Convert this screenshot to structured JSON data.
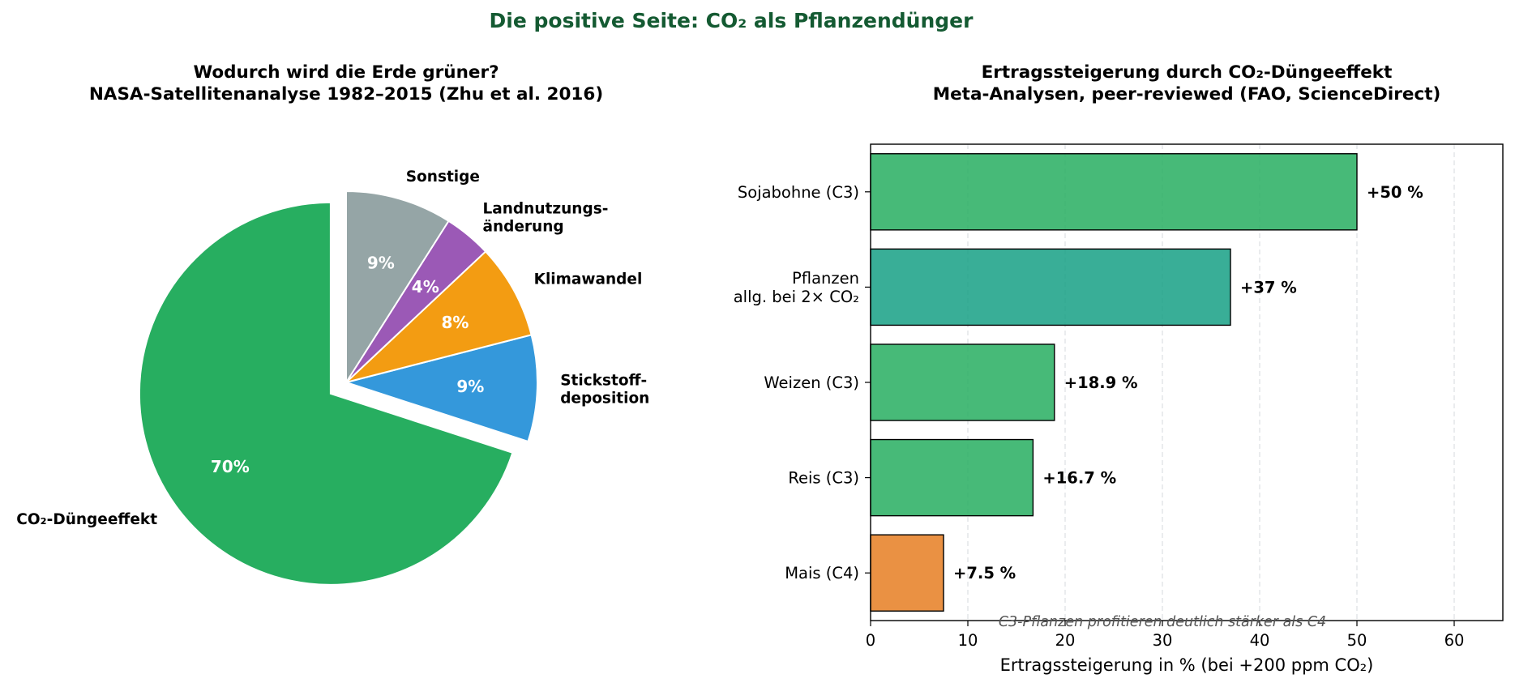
{
  "figure": {
    "suptitle": "Die positive Seite: CO₂ als Pflanzendünger",
    "suptitle_color": "#145a32"
  },
  "chart_data": [
    {
      "type": "pie",
      "title_lines": [
        "Wodurch wird die Erde grüner?",
        "NASA-Satellitenanalyse 1982–2015 (Zhu et al. 2016)"
      ],
      "slices": [
        {
          "label": [
            "CO₂-Düngeeffekt"
          ],
          "value": 70,
          "pct_label": "70%",
          "color": "#27ae60",
          "exploded": true
        },
        {
          "label": [
            "Stickstoff-",
            "deposition"
          ],
          "value": 9,
          "pct_label": "9%",
          "color": "#3498db",
          "exploded": false
        },
        {
          "label": [
            "Klimawandel"
          ],
          "value": 8,
          "pct_label": "8%",
          "color": "#f39c12",
          "exploded": false
        },
        {
          "label": [
            "Landnutzungs-",
            "änderung"
          ],
          "value": 4,
          "pct_label": "4%",
          "color": "#9b59b6",
          "exploded": false
        },
        {
          "label": [
            "Sonstige"
          ],
          "value": 9,
          "pct_label": "9%",
          "color": "#95a5a6",
          "exploded": false
        }
      ],
      "start_angle_deg": 90,
      "direction": "counterclockwise"
    },
    {
      "type": "bar",
      "orientation": "horizontal",
      "title_lines": [
        "Ertragssteigerung durch CO₂-Düngeeffekt",
        "Meta-Analysen, peer-reviewed (FAO, ScienceDirect)"
      ],
      "categories": [
        [
          "Sojabohne (C3)"
        ],
        [
          "Pflanzen",
          "allg. bei 2× CO₂"
        ],
        [
          "Weizen (C3)"
        ],
        [
          "Reis (C3)"
        ],
        [
          "Mais (C4)"
        ]
      ],
      "values": [
        50,
        37,
        18.9,
        16.7,
        7.5
      ],
      "value_labels": [
        "+50 %",
        "+37 %",
        "+18.9 %",
        "+16.7 %",
        "+7.5 %"
      ],
      "colors": [
        "#27ae60",
        "#16a085",
        "#27ae60",
        "#27ae60",
        "#e67e22"
      ],
      "xlabel": "Ertragssteigerung in % (bei +200 ppm CO₂)",
      "xlim": [
        0,
        65
      ],
      "xticks": [
        0,
        10,
        20,
        30,
        40,
        50,
        60
      ],
      "grid": "x, dashed",
      "annotation": "C3-Pflanzen profitieren deutlich stärker als C4"
    }
  ]
}
